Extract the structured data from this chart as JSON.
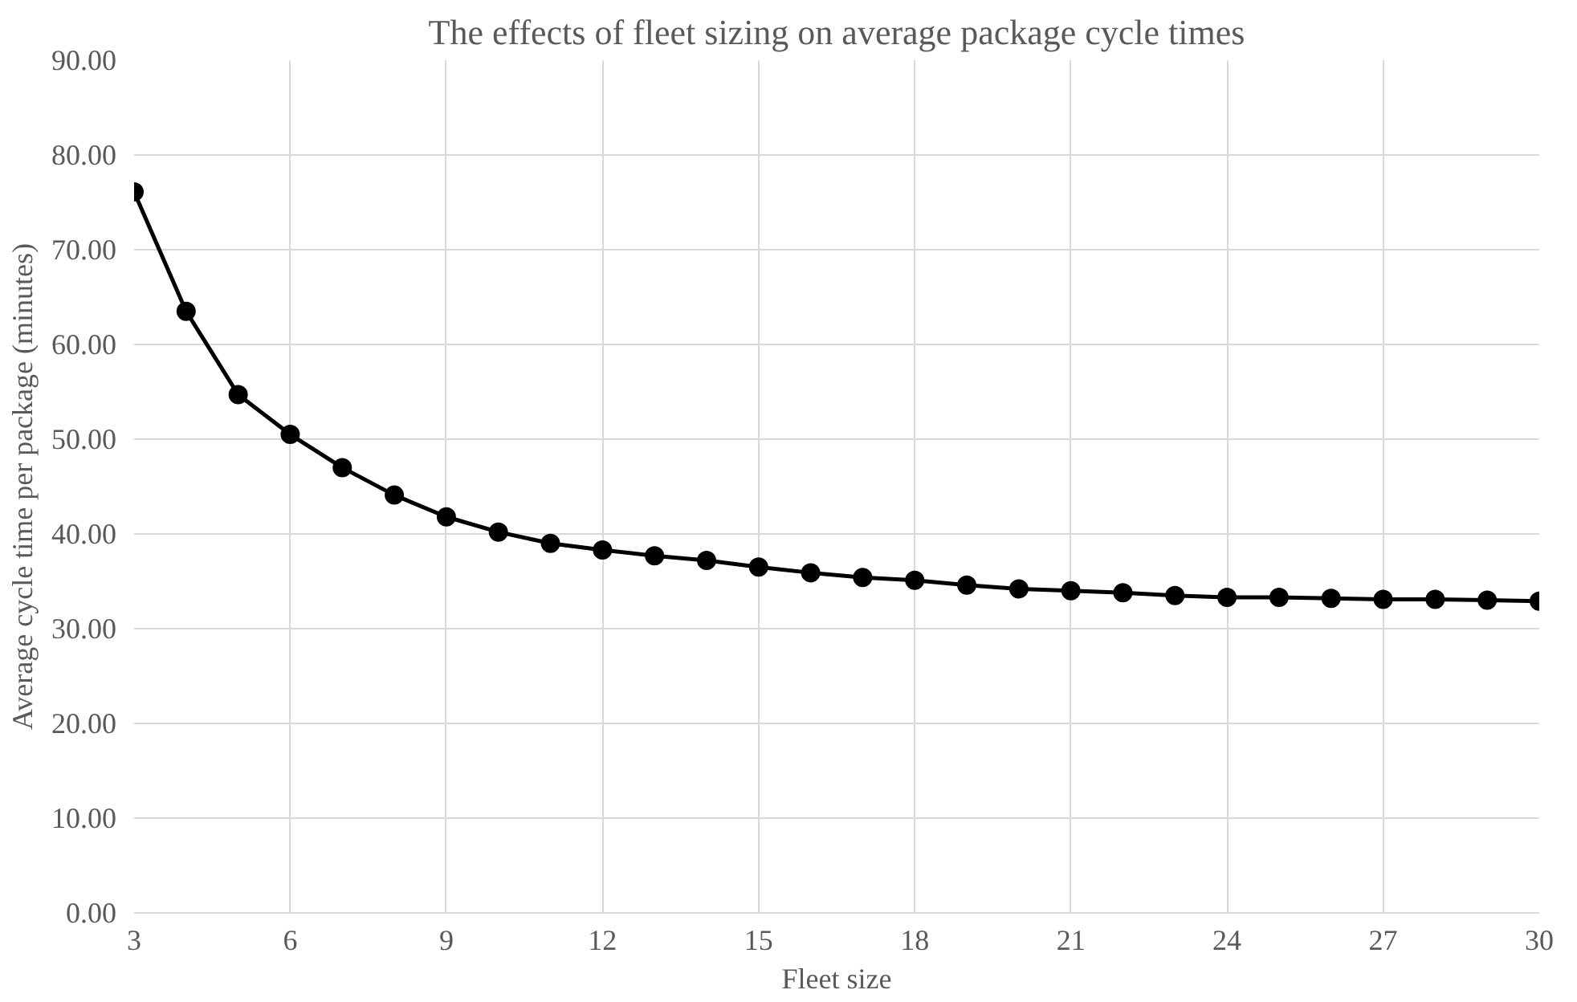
{
  "chart_data": {
    "type": "line",
    "title": "The effects of fleet sizing on average package cycle times",
    "xlabel": "Fleet size",
    "ylabel": "Average cycle time per package (minutes)",
    "x": [
      3,
      4,
      5,
      6,
      7,
      8,
      9,
      10,
      11,
      12,
      13,
      14,
      15,
      16,
      17,
      18,
      19,
      20,
      21,
      22,
      23,
      24,
      25,
      26,
      27,
      28,
      29,
      30
    ],
    "series": [
      {
        "color": "#000000",
        "values": [
          76.1,
          63.5,
          54.7,
          50.5,
          47.0,
          44.1,
          41.8,
          40.2,
          39.0,
          38.3,
          37.7,
          37.2,
          36.5,
          35.9,
          35.4,
          35.1,
          34.6,
          34.2,
          34.0,
          33.8,
          33.5,
          33.3,
          33.3,
          33.2,
          33.1,
          33.1,
          33.0,
          32.9
        ]
      }
    ],
    "xlim": [
      3,
      30
    ],
    "xticks": [
      3,
      6,
      9,
      12,
      15,
      18,
      21,
      24,
      27,
      30
    ],
    "ylim": [
      0,
      90
    ],
    "yticks": [
      {
        "value": 0,
        "label": "0.00"
      },
      {
        "value": 10,
        "label": "10.00"
      },
      {
        "value": 20,
        "label": "20.00"
      },
      {
        "value": 30,
        "label": "30.00"
      },
      {
        "value": 40,
        "label": "40.00"
      },
      {
        "value": 50,
        "label": "50.00"
      },
      {
        "value": 60,
        "label": "60.00"
      },
      {
        "value": 70,
        "label": "70.00"
      },
      {
        "value": 80,
        "label": "80.00"
      },
      {
        "value": 90,
        "label": "90.00"
      }
    ],
    "grid": true,
    "marker": "circle",
    "line_style": "solid"
  }
}
